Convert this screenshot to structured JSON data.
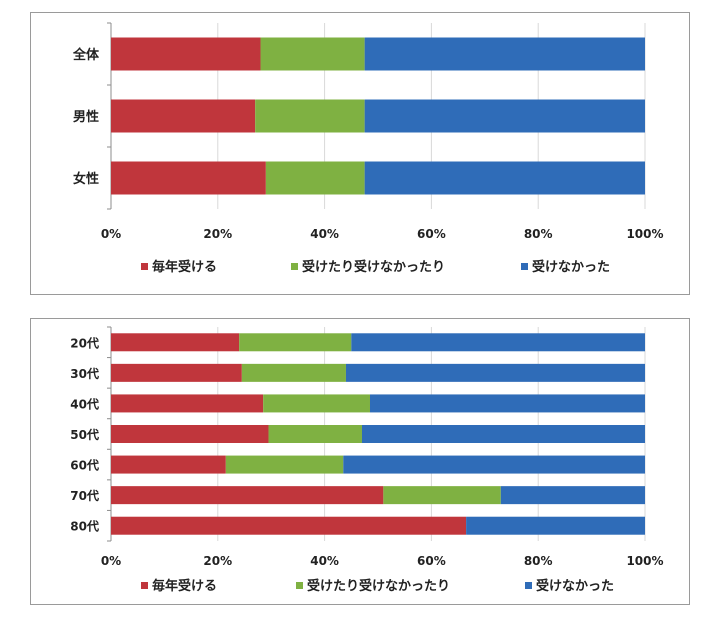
{
  "colors": {
    "annual": "#c0363c",
    "sometimes": "#7fb142",
    "never": "#2f6cb8"
  },
  "chart_data": [
    {
      "type": "bar",
      "orientation": "horizontal",
      "stacked": "percent",
      "categories": [
        "全体",
        "男性",
        "女性"
      ],
      "series": [
        {
          "name": "毎年受ける",
          "values": [
            28,
            27,
            29
          ]
        },
        {
          "name": "受けたり受けなかったり",
          "values": [
            19.5,
            20.5,
            18.5
          ]
        },
        {
          "name": "受けなかった",
          "values": [
            52.5,
            52.5,
            52.5
          ]
        }
      ],
      "xlim": [
        0,
        100
      ],
      "xticks": [
        "0%",
        "20%",
        "40%",
        "60%",
        "80%",
        "100%"
      ],
      "legend_position": "bottom"
    },
    {
      "type": "bar",
      "orientation": "horizontal",
      "stacked": "percent",
      "categories": [
        "20代",
        "30代",
        "40代",
        "50代",
        "60代",
        "70代",
        "80代"
      ],
      "series": [
        {
          "name": "毎年受ける",
          "values": [
            24,
            24.5,
            28.5,
            29.5,
            21.5,
            51,
            66.5
          ]
        },
        {
          "name": "受けたり受けなかったり",
          "values": [
            21,
            19.5,
            20,
            17.5,
            22,
            22,
            0
          ]
        },
        {
          "name": "受けなかった",
          "values": [
            55,
            56,
            51.5,
            53,
            56.5,
            27,
            33.5
          ]
        }
      ],
      "xlim": [
        0,
        100
      ],
      "xticks": [
        "0%",
        "20%",
        "40%",
        "60%",
        "80%",
        "100%"
      ],
      "legend_position": "bottom"
    }
  ]
}
